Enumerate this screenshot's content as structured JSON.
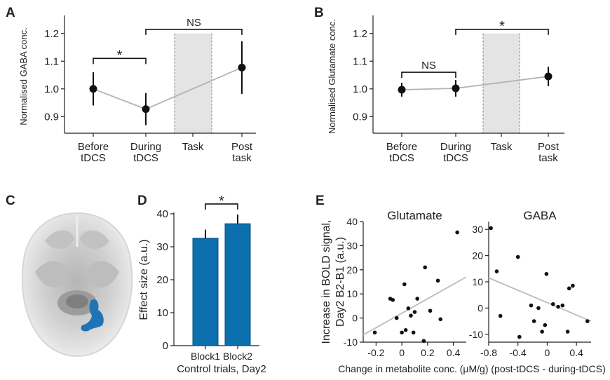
{
  "panels": {
    "a": "A",
    "b": "B",
    "c": "C",
    "d": "D",
    "e": "E"
  },
  "chart_data": [
    {
      "id": "A",
      "type": "line",
      "categories": [
        [
          "Before",
          "tDCS"
        ],
        [
          "During",
          "tDCS"
        ],
        [
          "Task",
          ""
        ],
        [
          "Post",
          "task"
        ]
      ],
      "x": [
        0,
        1,
        3
      ],
      "values": [
        1.0,
        0.927,
        1.077
      ],
      "errors": [
        0.06,
        0.058,
        0.095
      ],
      "ylabel": "Normalised GABA conc.",
      "ylim": [
        0.84,
        1.25
      ],
      "yticks": [
        "0.9",
        "1.0",
        "1.1",
        "1.2"
      ],
      "task_band": [
        2,
        2
      ],
      "brackets": [
        {
          "from": 0,
          "to": 1,
          "label": "*",
          "level": 1.11
        },
        {
          "from": 1,
          "to": 3,
          "label": "NS",
          "level": 1.215
        }
      ]
    },
    {
      "id": "B",
      "type": "line",
      "categories": [
        [
          "Before",
          "tDCS"
        ],
        [
          "During",
          "tDCS"
        ],
        [
          "Task",
          ""
        ],
        [
          "Post",
          "task"
        ]
      ],
      "x": [
        0,
        1,
        3
      ],
      "values": [
        0.997,
        1.002,
        1.045
      ],
      "errors": [
        0.025,
        0.03,
        0.035
      ],
      "ylabel": "Normalised Glutamate conc.",
      "ylim": [
        0.84,
        1.25
      ],
      "yticks": [
        "0.9",
        "1.0",
        "1.1",
        "1.2"
      ],
      "task_band": [
        2,
        2
      ],
      "brackets": [
        {
          "from": 0,
          "to": 1,
          "label": "NS",
          "level": 1.06
        },
        {
          "from": 1,
          "to": 3,
          "label": "*",
          "level": 1.215
        }
      ]
    },
    {
      "id": "D",
      "type": "bar",
      "categories": [
        "Block1",
        "Block2"
      ],
      "values": [
        32.6,
        37.0
      ],
      "errors": [
        2.6,
        2.8
      ],
      "ylabel": "Effect size (a.u.)",
      "xlabel": "Control trials, Day2",
      "ylim": [
        0,
        40
      ],
      "yticks": [
        "0",
        "10",
        "20",
        "30",
        "40"
      ],
      "bar_color": "#0c6fae",
      "brackets": [
        {
          "from": 0,
          "to": 1,
          "label": "*",
          "level": 43
        }
      ]
    },
    {
      "id": "E-Glutamate",
      "type": "scatter",
      "title": "Glutamate",
      "ylabel": [
        "Increase in BOLD signal,",
        "Day2 B2-B1 (a.u.)"
      ],
      "xlim": [
        -0.3,
        0.5
      ],
      "ylim": [
        -10,
        40
      ],
      "xticks": [
        "-0.2",
        "0",
        "0.2",
        "0.4"
      ],
      "yticks": [
        "-10",
        "0",
        "10",
        "20",
        "30",
        "40"
      ],
      "points": [
        [
          -0.21,
          -6
        ],
        [
          -0.09,
          8
        ],
        [
          -0.07,
          7.5
        ],
        [
          -0.04,
          0
        ],
        [
          0.0,
          -6
        ],
        [
          0.02,
          14
        ],
        [
          0.03,
          -5
        ],
        [
          0.05,
          4
        ],
        [
          0.07,
          1
        ],
        [
          0.09,
          -6
        ],
        [
          0.1,
          2.5
        ],
        [
          0.12,
          8
        ],
        [
          0.17,
          -9.5
        ],
        [
          0.18,
          21
        ],
        [
          0.22,
          3
        ],
        [
          0.28,
          15.5
        ],
        [
          0.3,
          -0.5
        ],
        [
          0.43,
          35.5
        ]
      ],
      "fit": [
        [
          -0.3,
          -7
        ],
        [
          0.5,
          17
        ]
      ]
    },
    {
      "id": "E-GABA",
      "type": "scatter",
      "title": "GABA",
      "xlim": [
        -0.8,
        0.6
      ],
      "ylim": [
        -13,
        33
      ],
      "xticks": [
        "-0.8",
        "-0.4",
        "0",
        "0.4"
      ],
      "yticks": [
        "-10",
        "0",
        "10",
        "20",
        "30"
      ],
      "points": [
        [
          -0.77,
          30.5
        ],
        [
          -0.69,
          14
        ],
        [
          -0.64,
          -3
        ],
        [
          -0.4,
          19.5
        ],
        [
          -0.38,
          -11
        ],
        [
          -0.22,
          1
        ],
        [
          -0.18,
          -5
        ],
        [
          -0.12,
          0
        ],
        [
          -0.07,
          -9
        ],
        [
          -0.03,
          -6.5
        ],
        [
          -0.01,
          13
        ],
        [
          0.08,
          1.5
        ],
        [
          0.15,
          0.5
        ],
        [
          0.21,
          1
        ],
        [
          0.28,
          -9
        ],
        [
          0.3,
          7.5
        ],
        [
          0.35,
          8.5
        ],
        [
          0.55,
          -5
        ]
      ],
      "fit": [
        [
          -0.8,
          11.5
        ],
        [
          0.6,
          -5
        ]
      ]
    }
  ],
  "shared_xlabel": "Change in metabolite conc. (μM/g) (post-tDCS - during-tDCS)",
  "brain": {
    "blob_color": "#1f74b6"
  }
}
